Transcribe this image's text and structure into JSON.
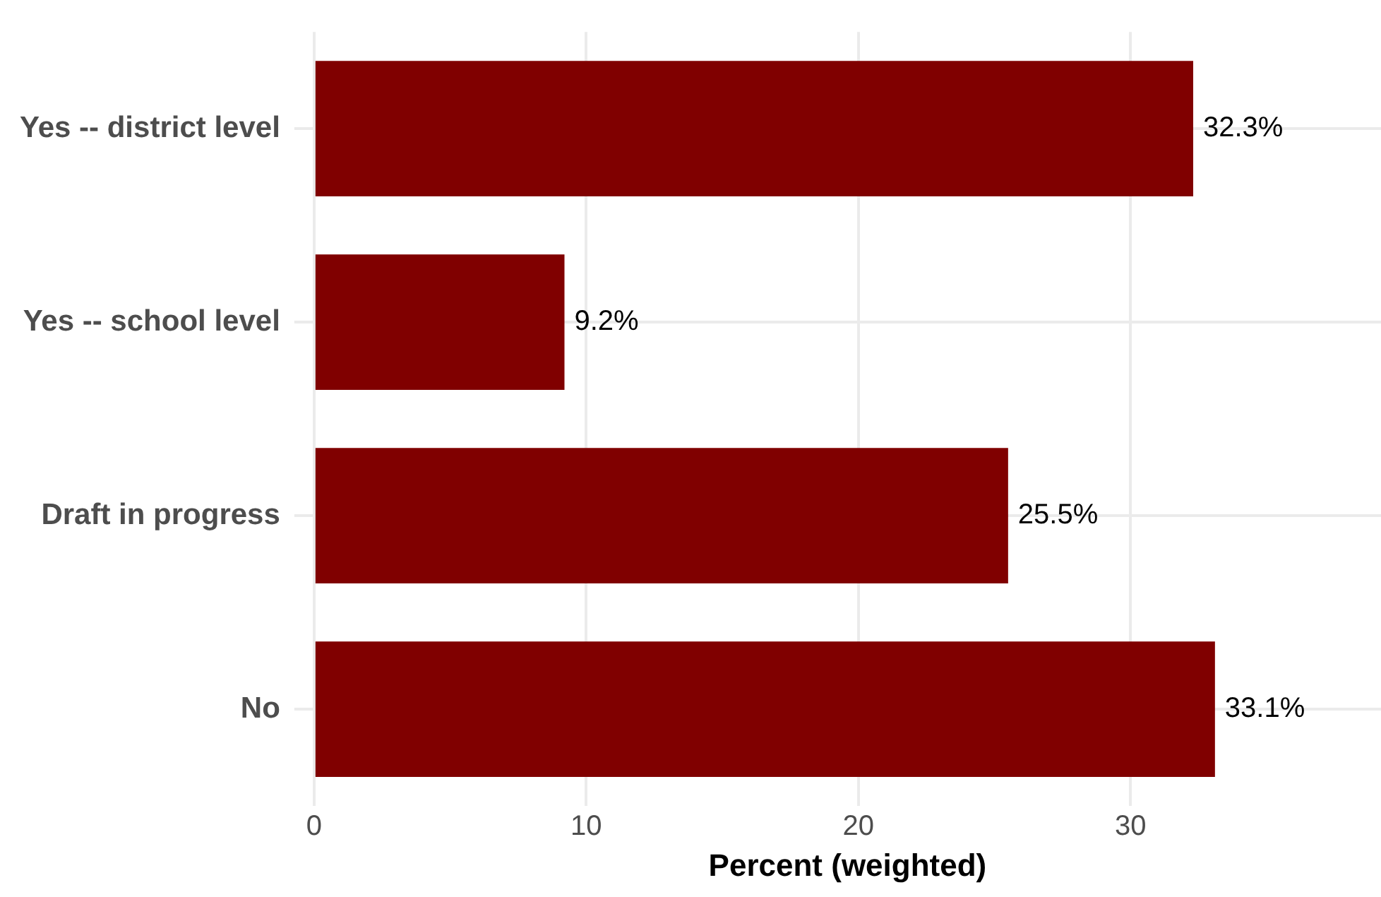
{
  "chart_data": {
    "type": "bar",
    "orientation": "horizontal",
    "xlabel": "Percent (weighted)",
    "categories": [
      "Yes -- district level",
      "Yes -- school level",
      "Draft in progress",
      "No"
    ],
    "values": [
      32.3,
      9.2,
      25.5,
      33.1
    ],
    "value_labels": [
      "32.3%",
      "9.2%",
      "25.5%",
      "33.1%"
    ],
    "color": "#800000",
    "xlim": [
      0,
      39.2
    ],
    "xticks": [
      0,
      10,
      20,
      30
    ],
    "grid": true,
    "legend": false
  }
}
